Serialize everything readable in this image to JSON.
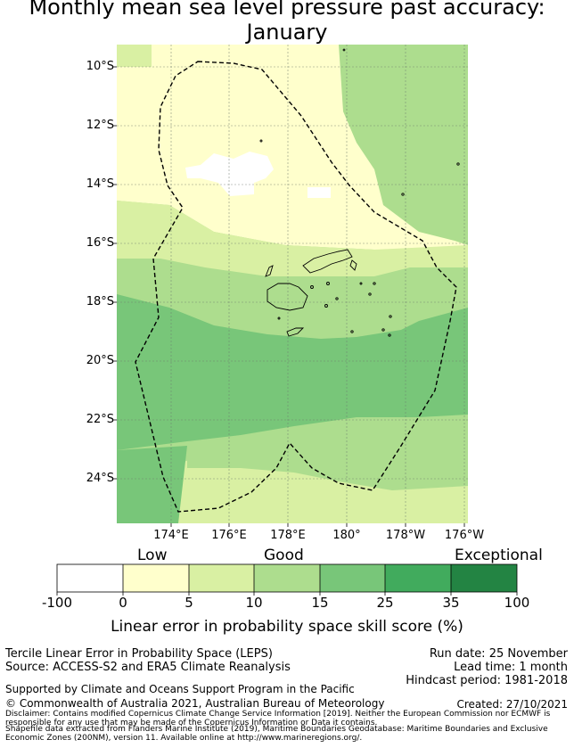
{
  "title": {
    "line1": "Monthly mean sea level pressure past accuracy:",
    "line2": "January"
  },
  "map": {
    "lat_labels": [
      "10°S",
      "12°S",
      "14°S",
      "16°S",
      "18°S",
      "20°S",
      "22°S",
      "24°S"
    ],
    "lon_labels": [
      "174°E",
      "176°E",
      "178°E",
      "180°",
      "178°W",
      "176°W"
    ]
  },
  "legend": {
    "categories": [
      "Low",
      "Good",
      "Exceptional"
    ],
    "ticks": [
      "-100",
      "0",
      "5",
      "10",
      "15",
      "25",
      "35",
      "100"
    ],
    "colors": [
      "#ffffff",
      "#ffffcc",
      "#d9f0a3",
      "#addd8e",
      "#78c679",
      "#41ab5d",
      "#238443"
    ],
    "label": "Linear error in probability space skill score (%)"
  },
  "info": {
    "method": "Tercile Linear Error in Probability Space (LEPS)",
    "source": "Source: ACCESS-S2 and ERA5 Climate Reanalysis",
    "run_date": "Run date: 25 November",
    "lead_time": "Lead time: 1 month",
    "hindcast": "Hindcast period: 1981-2018",
    "support": "Supported by Climate and Oceans Support Program in the Pacific",
    "copyright": "© Commonwealth of Australia 2021, Australian Bureau of Meteorology",
    "created": "Created: 27/10/2021",
    "disclaimer1": "Disclaimer: Contains modified Copernicus Climate Change Service Information [2019]. Neither the European Commission nor ECMWF is",
    "disclaimer2": "responsible for any use that may be made of the Copernicus Information or Data it contains.",
    "shapefile1": "Shapefile data extracted from Flanders Marine Institute (2019), Maritime Boundaries Geodatabase: Maritime Boundaries and Exclusive",
    "shapefile2": "Economic Zones (200NM), version 11. Available online at http://www.marineregions.org/."
  }
}
